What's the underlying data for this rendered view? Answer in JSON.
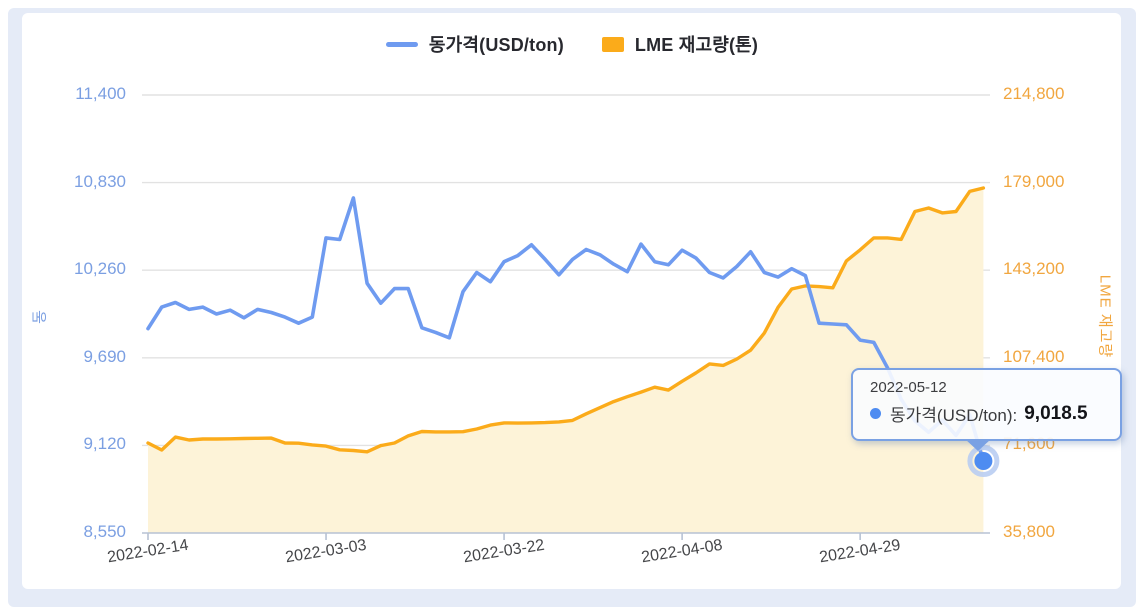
{
  "legend": {
    "items": [
      {
        "label": "동가격(USD/ton)",
        "type": "line"
      },
      {
        "label": "LME 재고량(톤)",
        "type": "square"
      }
    ]
  },
  "tooltip": {
    "date": "2022-05-12",
    "series_label": "동가격(USD/ton):",
    "value": "9,018.5"
  },
  "colors": {
    "price_line": "#6f9bf0",
    "price_point": "#4e8cf1",
    "price_point_halo": "#b9cdf2",
    "stock_line": "#fbab1a",
    "stock_fill": "#fdf3d8",
    "left_axis_text": "#7b9fe2",
    "right_axis_text": "#f1a63f",
    "grid": "#e2e2e2",
    "axis_line": "#b7c2d4",
    "tooltip_border": "#7aa1e3",
    "x_label_text": "#454649"
  },
  "chart_data": {
    "type": "line",
    "x": [
      "2022-02-14",
      "2022-02-15",
      "2022-02-16",
      "2022-02-17",
      "2022-02-18",
      "2022-02-21",
      "2022-02-22",
      "2022-02-23",
      "2022-02-24",
      "2022-02-25",
      "2022-02-28",
      "2022-03-01",
      "2022-03-02",
      "2022-03-03",
      "2022-03-04",
      "2022-03-07",
      "2022-03-08",
      "2022-03-09",
      "2022-03-10",
      "2022-03-11",
      "2022-03-14",
      "2022-03-15",
      "2022-03-16",
      "2022-03-17",
      "2022-03-18",
      "2022-03-21",
      "2022-03-22",
      "2022-03-23",
      "2022-03-24",
      "2022-03-25",
      "2022-03-28",
      "2022-03-29",
      "2022-03-30",
      "2022-03-31",
      "2022-04-01",
      "2022-04-04",
      "2022-04-05",
      "2022-04-06",
      "2022-04-07",
      "2022-04-08",
      "2022-04-11",
      "2022-04-12",
      "2022-04-13",
      "2022-04-14",
      "2022-04-19",
      "2022-04-20",
      "2022-04-21",
      "2022-04-22",
      "2022-04-25",
      "2022-04-26",
      "2022-04-27",
      "2022-04-28",
      "2022-04-29",
      "2022-05-02",
      "2022-05-03",
      "2022-05-04",
      "2022-05-05",
      "2022-05-06",
      "2022-05-09",
      "2022-05-10",
      "2022-05-11",
      "2022-05-12"
    ],
    "series": [
      {
        "name": "동가격(USD/ton)",
        "axis": "left",
        "style": "line",
        "values": [
          9880,
          10020,
          10050,
          10005,
          10020,
          9975,
          10000,
          9950,
          10005,
          9985,
          9955,
          9915,
          9955,
          10470,
          10460,
          10730,
          10175,
          10045,
          10140,
          10140,
          9885,
          9855,
          9820,
          10120,
          10245,
          10185,
          10315,
          10355,
          10425,
          10330,
          10230,
          10330,
          10395,
          10360,
          10300,
          10250,
          10430,
          10315,
          10295,
          10390,
          10340,
          10245,
          10210,
          10285,
          10380,
          10245,
          10215,
          10270,
          10225,
          9915,
          9910,
          9905,
          9805,
          9790,
          9625,
          9420,
          9280,
          9205,
          9285,
          9185,
          9320,
          9018.5
        ]
      },
      {
        "name": "LME 재고량(톤)",
        "axis": "right",
        "style": "area",
        "values": [
          72600,
          69700,
          75000,
          73800,
          74200,
          74200,
          74300,
          74400,
          74500,
          74600,
          72600,
          72500,
          71800,
          71300,
          69800,
          69500,
          69000,
          71500,
          72600,
          75500,
          77300,
          77100,
          77100,
          77200,
          78300,
          79900,
          80800,
          80700,
          80800,
          80900,
          81200,
          81800,
          84500,
          87000,
          89500,
          91500,
          93400,
          95400,
          94200,
          97800,
          101200,
          104900,
          104300,
          106900,
          110500,
          117500,
          128000,
          135500,
          136800,
          136500,
          136000,
          147000,
          151500,
          156400,
          156400,
          155800,
          167200,
          168600,
          166600,
          167200,
          175400,
          176800
        ]
      }
    ],
    "left_axis": {
      "title": "동",
      "min": 8550,
      "max": 11400,
      "ticks": [
        "11,400",
        "10,830",
        "10,260",
        "9,690",
        "9,120",
        "8,550"
      ]
    },
    "right_axis": {
      "title": "LME 재고량",
      "min": 35800,
      "max": 214800,
      "ticks": [
        "214,800",
        "179,000",
        "143,200",
        "107,400",
        "71,600",
        "35,800"
      ]
    },
    "x_ticks": [
      {
        "label": "2022-02-14",
        "index": 0
      },
      {
        "label": "2022-03-03",
        "index": 13
      },
      {
        "label": "2022-03-22",
        "index": 26
      },
      {
        "label": "2022-04-08",
        "index": 39
      },
      {
        "label": "2022-04-29",
        "index": 52
      }
    ],
    "highlight": {
      "series": 0,
      "index": 61
    },
    "grid": true,
    "legend_position": "top"
  }
}
